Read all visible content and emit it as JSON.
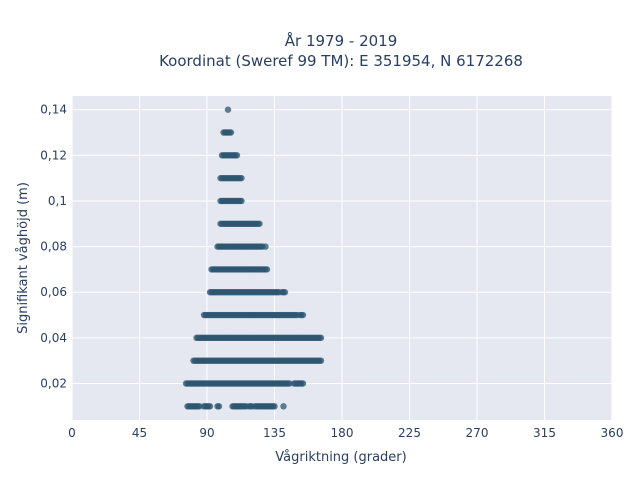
{
  "chart_data": {
    "type": "scatter",
    "title_lines": [
      "År 1979 - 2019",
      "Koordinat (Sweref 99 TM): E 351954, N 6172268"
    ],
    "xlabel": "Vågriktning (grader)",
    "ylabel": "Signifikant våghöjd (m)",
    "xlim": [
      0,
      360
    ],
    "ylim": [
      0.004,
      0.146
    ],
    "x_ticks": [
      0,
      45,
      90,
      135,
      180,
      225,
      270,
      315,
      360
    ],
    "x_tick_labels": [
      "0",
      "45",
      "90",
      "135",
      "180",
      "225",
      "270",
      "315",
      "360"
    ],
    "y_ticks": [
      0.02,
      0.04,
      0.06,
      0.08,
      0.1,
      0.12,
      0.14
    ],
    "y_tick_labels": [
      "0,02",
      "0,04",
      "0,06",
      "0,08",
      "0,1",
      "0,12",
      "0,14"
    ],
    "grid": true,
    "legend": "none",
    "marker_color": "#2e5570",
    "background_color": "#e5e8f0",
    "bands": [
      {
        "y": 0.01,
        "x_segments": [
          [
            77,
            85
          ],
          [
            88,
            92
          ],
          [
            97,
            98
          ],
          [
            107,
            116
          ],
          [
            118,
            120
          ],
          [
            122,
            134
          ],
          [
            135,
            135
          ],
          [
            141,
            141
          ]
        ]
      },
      {
        "y": 0.02,
        "x_segments": [
          [
            76,
            145
          ],
          [
            148,
            154
          ]
        ]
      },
      {
        "y": 0.03,
        "x_segments": [
          [
            81,
            166
          ]
        ]
      },
      {
        "y": 0.04,
        "x_segments": [
          [
            83,
            166
          ]
        ]
      },
      {
        "y": 0.05,
        "x_segments": [
          [
            88,
            150
          ],
          [
            152,
            154
          ]
        ]
      },
      {
        "y": 0.06,
        "x_segments": [
          [
            92,
            138
          ],
          [
            140,
            142
          ]
        ]
      },
      {
        "y": 0.07,
        "x_segments": [
          [
            93,
            130
          ]
        ]
      },
      {
        "y": 0.08,
        "x_segments": [
          [
            97,
            127
          ],
          [
            129,
            129
          ]
        ]
      },
      {
        "y": 0.09,
        "x_segments": [
          [
            99,
            125
          ]
        ]
      },
      {
        "y": 0.1,
        "x_segments": [
          [
            99,
            113
          ]
        ]
      },
      {
        "y": 0.11,
        "x_segments": [
          [
            99,
            113
          ]
        ]
      },
      {
        "y": 0.12,
        "x_segments": [
          [
            100,
            110
          ]
        ]
      },
      {
        "y": 0.13,
        "x_segments": [
          [
            101,
            106
          ]
        ]
      },
      {
        "y": 0.14,
        "x_segments": [
          [
            104,
            104
          ]
        ]
      }
    ]
  }
}
